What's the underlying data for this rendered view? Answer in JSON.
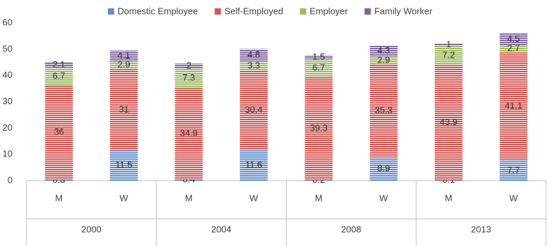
{
  "chart_data": {
    "type": "stacked-bar",
    "categories": [
      "M",
      "W",
      "M",
      "W",
      "M",
      "W",
      "M",
      "W"
    ],
    "category_groups": [
      "2000",
      "2004",
      "2008",
      "2013"
    ],
    "series": [
      {
        "name": "Domestic Employee",
        "color": "#5b8fd2",
        "values": [
          0.3,
          11.5,
          0.4,
          11.6,
          0.2,
          8.9,
          0.1,
          7.7
        ]
      },
      {
        "name": "Self-Employed",
        "color": "#d9534f",
        "values": [
          36,
          31,
          34.9,
          30.4,
          39.3,
          35.3,
          43.9,
          41.1
        ]
      },
      {
        "name": "Employer",
        "color": "#9bbb59",
        "values": [
          6.7,
          2.9,
          7.3,
          3.3,
          6.7,
          2.9,
          7.2,
          2.7
        ]
      },
      {
        "name": "Family Worker",
        "color": "#8064a2",
        "values": [
          2.1,
          4.1,
          2,
          4.8,
          1.5,
          4.3,
          1,
          4.5
        ]
      }
    ],
    "ylim": [
      0,
      60
    ],
    "yticks": [
      0,
      10,
      20,
      30,
      40,
      50,
      60
    ],
    "grid": false,
    "legend": "top"
  }
}
